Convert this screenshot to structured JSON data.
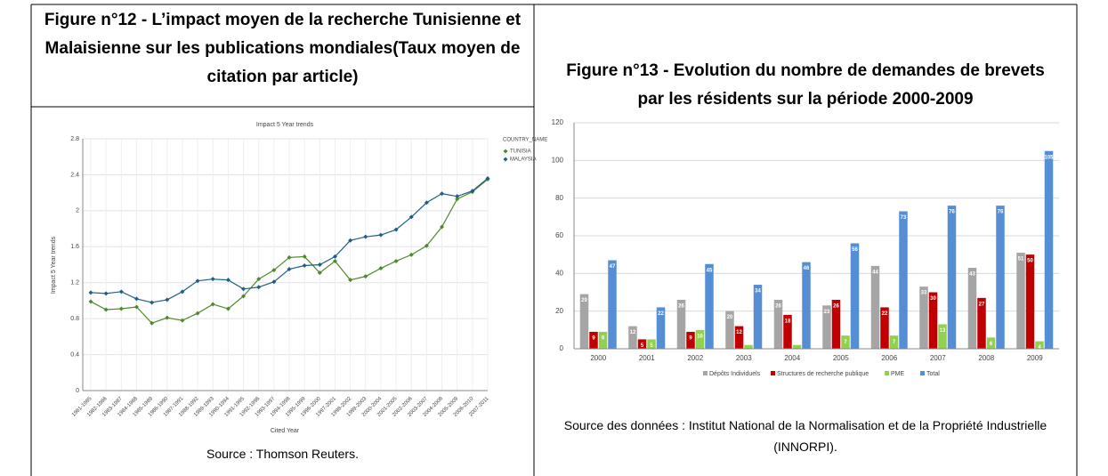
{
  "chart_data": [
    {
      "type": "line",
      "heading": "Figure n°12 - L’impact moyen de la recherche Tunisienne et Malaisienne sur les publications mondiales(Taux moyen de citation par article)",
      "title": "Impact 5 Year trends",
      "ylabel": "Impact 5 Year trends",
      "xlabel": "Cited Year",
      "legend_title": "COUNTRY_NAME",
      "legend": "top-right",
      "grid": true,
      "categories": [
        "1981-1985",
        "1982-1986",
        "1983-1987",
        "1984-1988",
        "1985-1989",
        "1986-1990",
        "1987-1991",
        "1988-1992",
        "1989-1993",
        "1990-1994",
        "1991-1995",
        "1992-1996",
        "1993-1997",
        "1994-1998",
        "1995-1999",
        "1996-2000",
        "1997-2001",
        "1998-2002",
        "1999-2003",
        "2000-2004",
        "2001-2005",
        "2002-2006",
        "2003-2007",
        "2004-2008",
        "2005-2009",
        "2006-2010",
        "2007-2011"
      ],
      "series": [
        {
          "name": "TUNISIA",
          "color": "#4e8a2c",
          "values": [
            0.99,
            0.9,
            0.91,
            0.93,
            0.75,
            0.81,
            0.78,
            0.86,
            0.96,
            0.91,
            1.05,
            1.24,
            1.34,
            1.48,
            1.49,
            1.31,
            1.44,
            1.23,
            1.27,
            1.36,
            1.44,
            1.51,
            1.61,
            1.82,
            2.13,
            2.21,
            2.35
          ]
        },
        {
          "name": "MALAYSIA",
          "color": "#1d5f8a",
          "values": [
            1.09,
            1.08,
            1.1,
            1.02,
            0.98,
            1.01,
            1.1,
            1.22,
            1.24,
            1.23,
            1.13,
            1.15,
            1.21,
            1.35,
            1.39,
            1.4,
            1.49,
            1.67,
            1.71,
            1.73,
            1.79,
            1.93,
            2.09,
            2.19,
            2.16,
            2.22,
            2.36
          ]
        }
      ],
      "ylim": [
        0,
        2.8
      ],
      "yticks": [
        0,
        0.4,
        0.8,
        1.2,
        1.6,
        2,
        2.4,
        2.8
      ],
      "source": "Source : Thomson Reuters."
    },
    {
      "type": "bar",
      "heading": "Figure n°13 - Evolution du nombre de demandes de brevets par les résidents sur la période 2000-2009",
      "legend": "bottom",
      "grid": true,
      "categories": [
        "2000",
        "2001",
        "2002",
        "2003",
        "2004",
        "2005",
        "2006",
        "2007",
        "2008",
        "2009"
      ],
      "series": [
        {
          "name": "Dépôts Individuels",
          "color": "#a5a5a5",
          "values": [
            29,
            12,
            26,
            20,
            26,
            23,
            44,
            33,
            43,
            51
          ]
        },
        {
          "name": "Structures de recherche publique",
          "color": "#c00000",
          "values": [
            9,
            5,
            9,
            12,
            18,
            26,
            22,
            30,
            27,
            50
          ]
        },
        {
          "name": "PME",
          "color": "#92d050",
          "values": [
            9,
            5,
            10,
            2,
            2,
            7,
            7,
            13,
            6,
            4
          ]
        },
        {
          "name": "Total",
          "color": "#558ed5",
          "values": [
            47,
            22,
            45,
            34,
            46,
            56,
            73,
            76,
            76,
            105
          ]
        }
      ],
      "ylim": [
        0,
        120
      ],
      "yticks": [
        0,
        20,
        40,
        60,
        80,
        100,
        120
      ],
      "source": "Source des données : Institut National de la Normalisation et de la Propriété Industrielle (INNORPI)."
    }
  ]
}
